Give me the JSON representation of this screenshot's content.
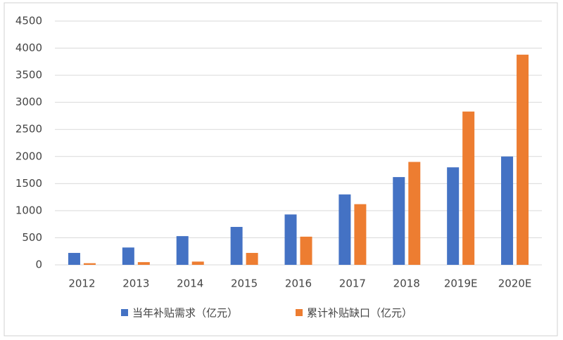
{
  "chart_data": {
    "type": "bar",
    "categories": [
      "2012",
      "2013",
      "2014",
      "2015",
      "2016",
      "2017",
      "2018",
      "2019E",
      "2020E"
    ],
    "series": [
      {
        "name": "当年补贴需求（亿元）",
        "color": "#4472c4",
        "values": [
          220,
          320,
          530,
          700,
          930,
          1300,
          1620,
          1800,
          2000
        ]
      },
      {
        "name": "累计补贴缺口（亿元）",
        "color": "#ed7d31",
        "values": [
          30,
          50,
          60,
          220,
          520,
          1120,
          1900,
          2830,
          3880
        ]
      }
    ],
    "ylim": [
      0,
      4500
    ],
    "yticks": [
      0,
      500,
      1000,
      1500,
      2000,
      2500,
      3000,
      3500,
      4000,
      4500
    ],
    "grid": true,
    "legend": "bottom"
  }
}
